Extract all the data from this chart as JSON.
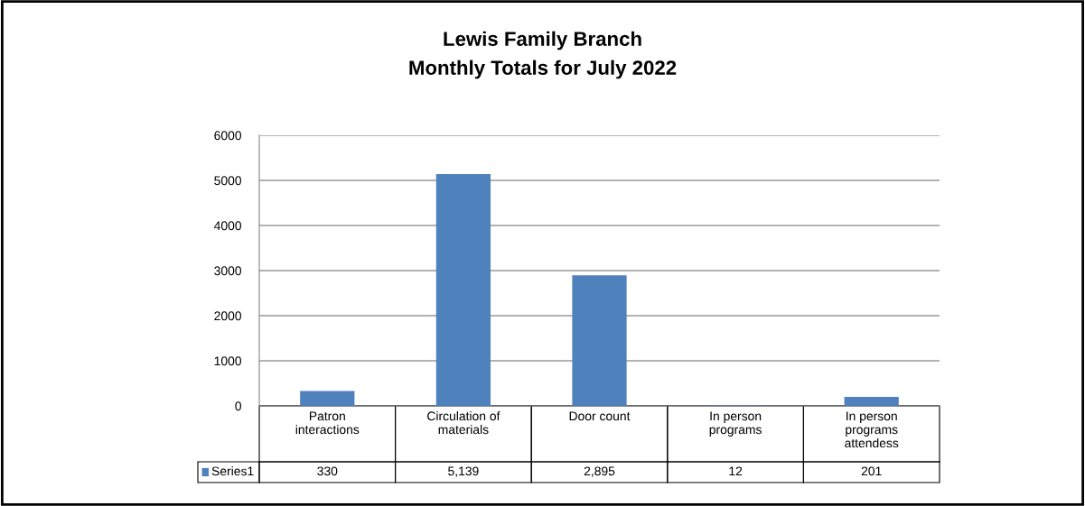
{
  "chart_data": {
    "type": "bar",
    "title": "Lewis Family Branch",
    "subtitle": "Monthly Totals for July 2022",
    "categories": [
      "Patron interactions",
      "Circulation of materials",
      "Door count",
      "In person programs",
      "In person programs attendess"
    ],
    "series": [
      {
        "name": "Series1",
        "color": "#4f81bd",
        "values": [
          330,
          5139,
          2895,
          12,
          201
        ],
        "value_labels": [
          "330",
          "5,139",
          "2,895",
          "12",
          "201"
        ]
      }
    ],
    "ylim": [
      0,
      6000
    ],
    "yticks": [
      0,
      1000,
      2000,
      3000,
      4000,
      5000,
      6000
    ],
    "grid": "y",
    "legend": "bottom left"
  }
}
